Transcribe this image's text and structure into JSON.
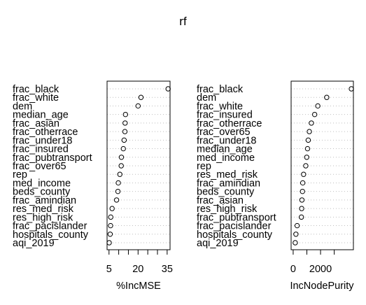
{
  "chart_data": [
    {
      "type": "scatter",
      "title": "rf",
      "xlabel": "%IncMSE",
      "xticks": [
        5,
        20,
        35
      ],
      "xticks_minor": [
        10,
        15,
        25,
        30
      ],
      "xlim": [
        4,
        36.5
      ],
      "grid": "dotted horizontal",
      "categories": [
        "frac_black",
        "frac_white",
        "dem",
        "median_age",
        "frac_asian",
        "frac_otherrace",
        "frac_under18",
        "frac_insured",
        "frac_pubtransport",
        "frac_over65",
        "rep",
        "med_income",
        "beds_county",
        "frac_amindian",
        "res_med_risk",
        "res_high_risk",
        "frac_pacislander",
        "hospitals_county",
        "aqi_2019"
      ],
      "values": [
        35.5,
        21.5,
        20.0,
        13.5,
        13.3,
        13.2,
        12.8,
        12.4,
        11.4,
        11.3,
        10.6,
        9.8,
        9.6,
        8.9,
        6.6,
        5.9,
        5.8,
        5.6,
        5.1
      ]
    },
    {
      "type": "scatter",
      "title": "",
      "xlabel": "IncNodePurity",
      "xticks": [
        0,
        2000
      ],
      "xticks_minor": [
        1000,
        3000
      ],
      "xlim": [
        -150,
        4400
      ],
      "grid": "dotted horizontal",
      "categories": [
        "frac_black",
        "dem",
        "frac_white",
        "frac_insured",
        "frac_otherrace",
        "frac_over65",
        "frac_under18",
        "median_age",
        "med_income",
        "rep",
        "res_med_risk",
        "frac_amindian",
        "beds_county",
        "frac_asian",
        "res_high_risk",
        "frac_pubtransport",
        "frac_pacislander",
        "hospitals_county",
        "aqi_2019"
      ],
      "values": [
        4250,
        2450,
        1800,
        1570,
        1330,
        1180,
        1100,
        1050,
        990,
        920,
        760,
        700,
        680,
        640,
        620,
        600,
        290,
        200,
        150
      ]
    }
  ]
}
